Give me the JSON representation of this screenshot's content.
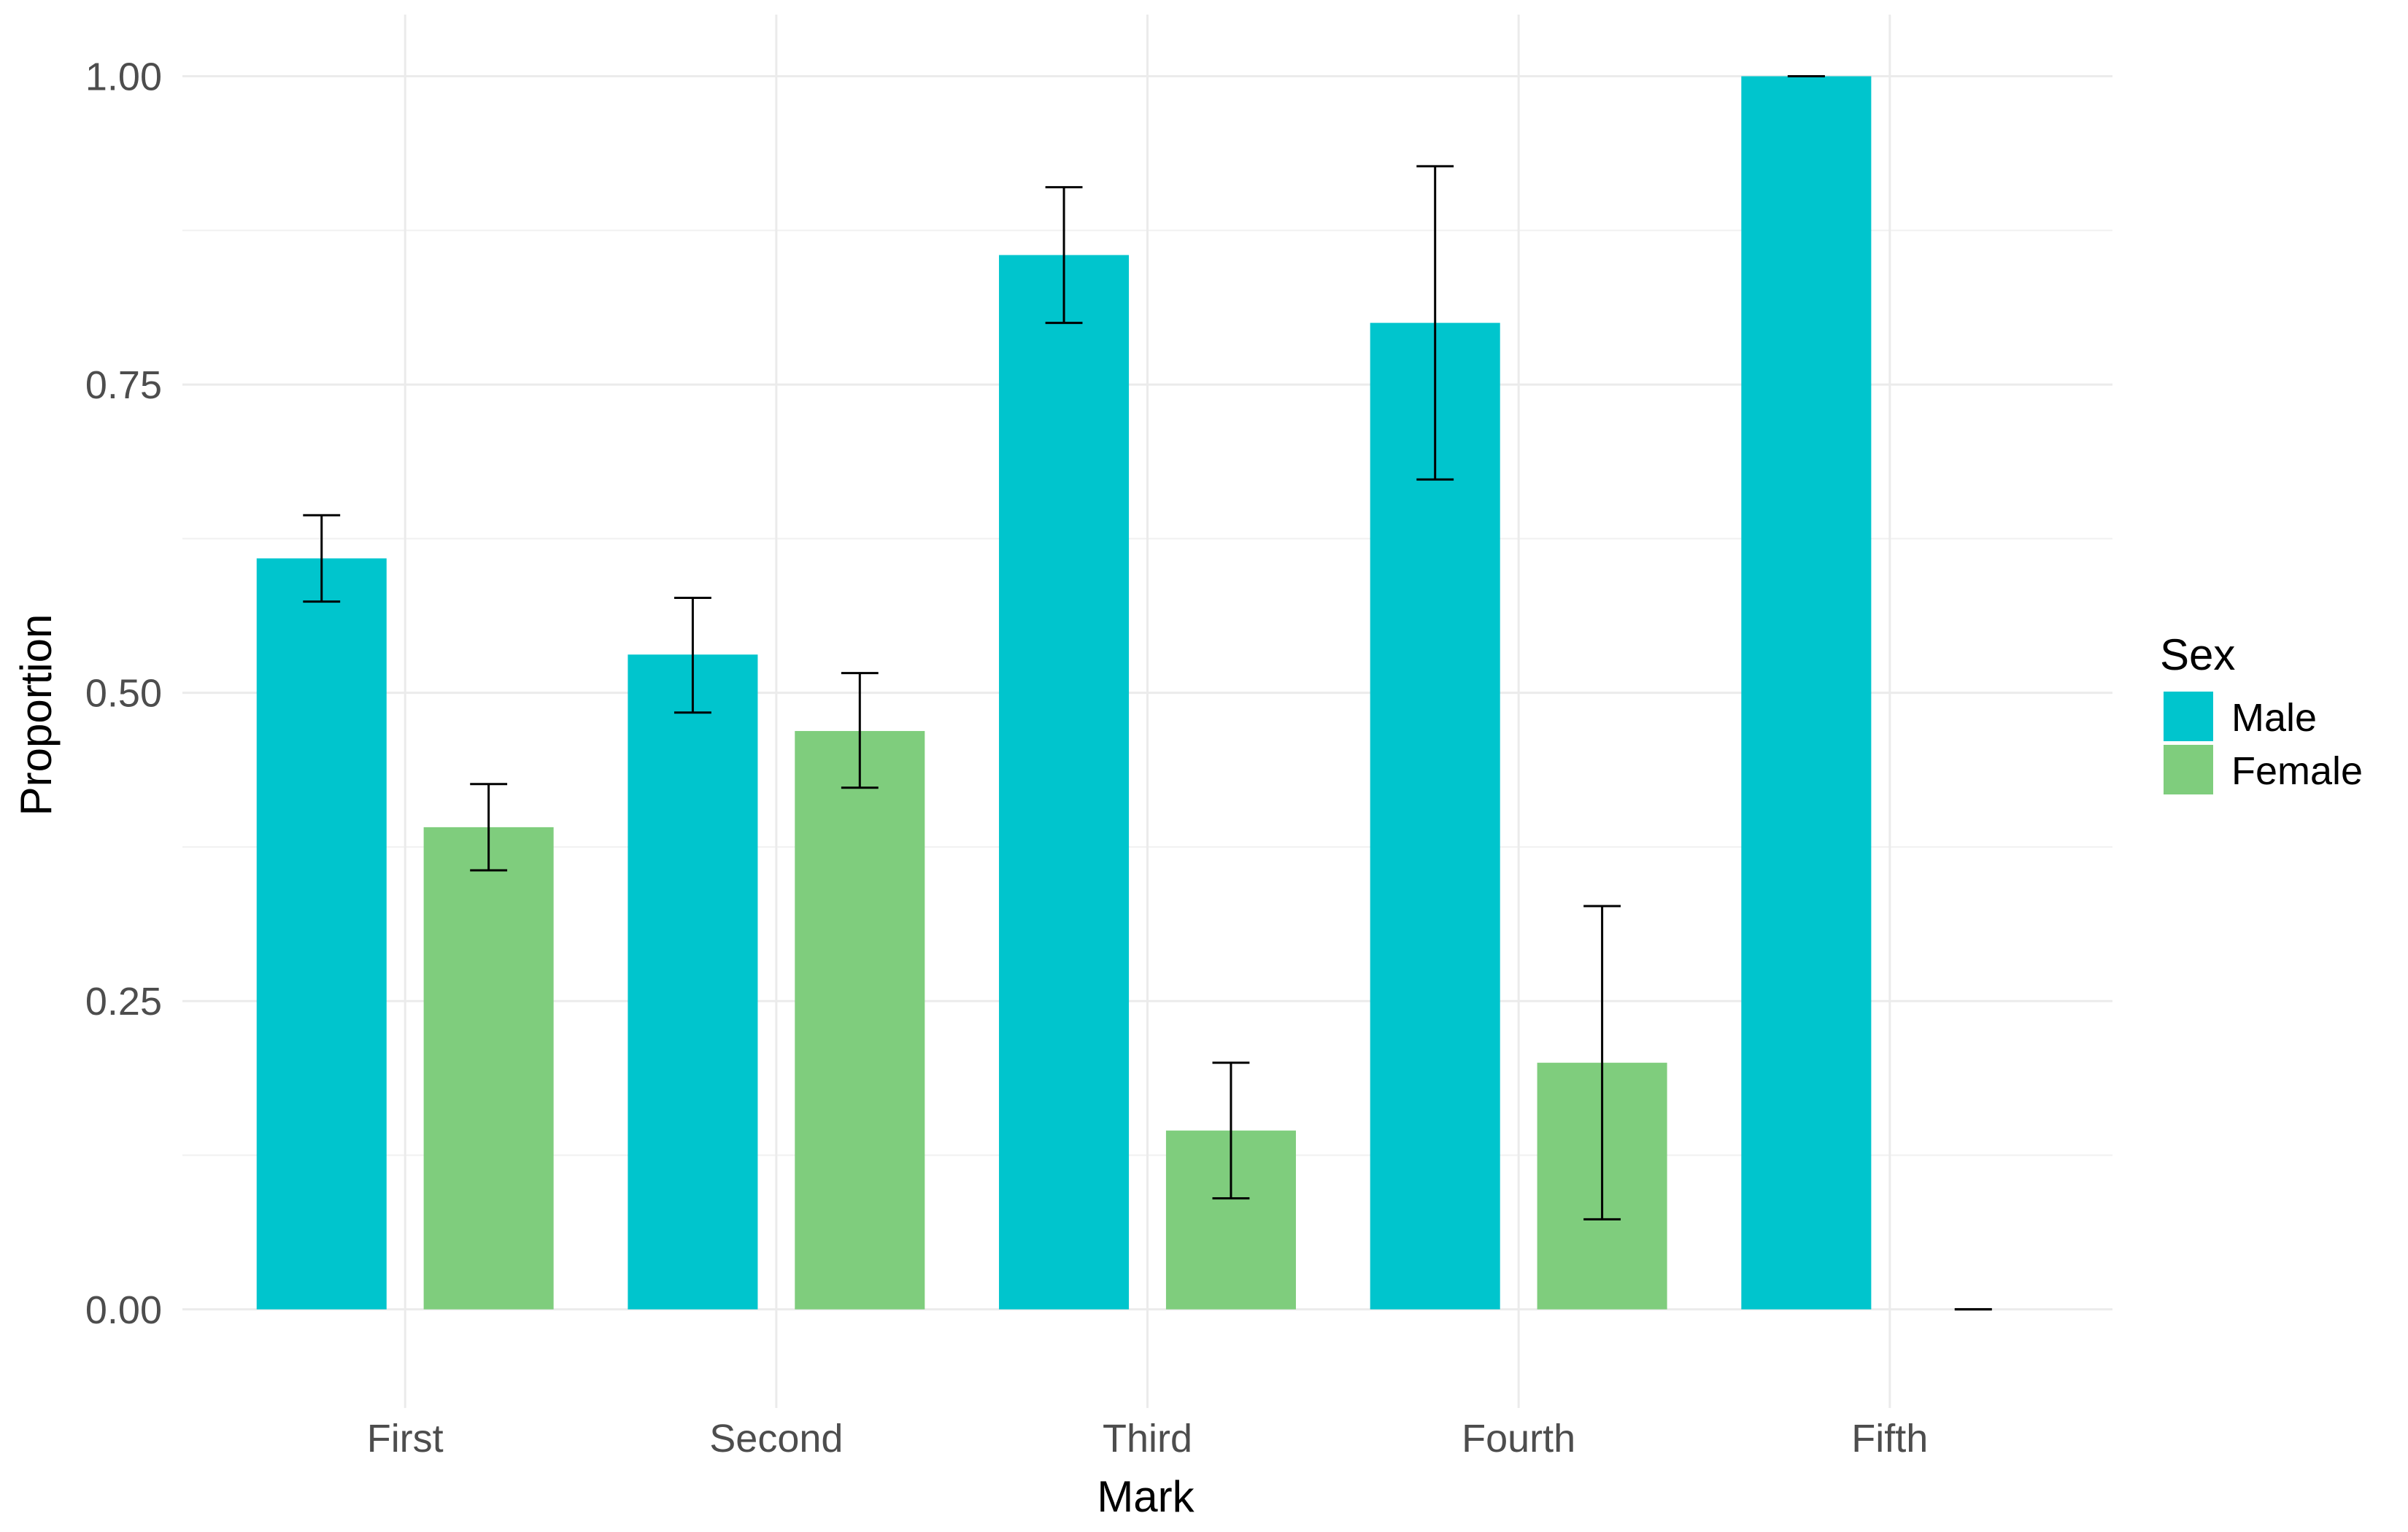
{
  "chart_data": {
    "type": "bar",
    "xlabel": "Mark",
    "ylabel": "Proportion",
    "categories": [
      "First",
      "Second",
      "Third",
      "Fourth",
      "Fifth"
    ],
    "ylim": [
      -0.08,
      1.05
    ],
    "yticks": [
      0.0,
      0.25,
      0.5,
      0.75,
      1.0
    ],
    "ytick_labels": [
      "0.00",
      "0.25",
      "0.50",
      "0.75",
      "1.00"
    ],
    "grid": true,
    "legend": {
      "title": "Sex",
      "position": "right"
    },
    "series": [
      {
        "name": "Male",
        "color": "#00C5CD",
        "values": [
          0.609,
          0.531,
          0.855,
          0.8,
          1.0
        ],
        "err_low": [
          0.574,
          0.484,
          0.8,
          0.673,
          1.0
        ],
        "err_high": [
          0.644,
          0.577,
          0.91,
          0.927,
          1.0
        ]
      },
      {
        "name": "Female",
        "color": "#7FCD7D",
        "values": [
          0.391,
          0.469,
          0.145,
          0.2,
          0.0
        ],
        "err_low": [
          0.356,
          0.423,
          0.09,
          0.073,
          0.0
        ],
        "err_high": [
          0.426,
          0.516,
          0.2,
          0.327,
          0.0
        ]
      }
    ]
  }
}
